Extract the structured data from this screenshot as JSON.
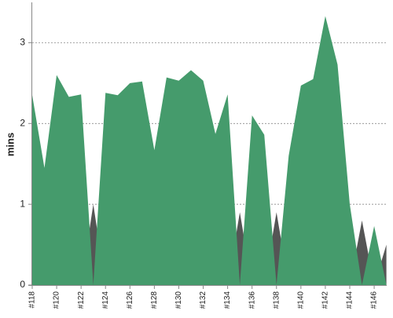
{
  "chart_data": {
    "type": "area",
    "y_label": "mins",
    "categories": [
      "#118",
      null,
      "#120",
      null,
      "#122",
      null,
      "#124",
      null,
      "#126",
      null,
      "#128",
      null,
      "#130",
      null,
      "#132",
      null,
      "#134",
      null,
      "#136",
      null,
      "#138",
      null,
      "#140",
      null,
      "#142",
      null,
      "#144",
      null,
      "#146",
      null
    ],
    "series": [
      {
        "color": "#555555",
        "values": [
          0,
          0,
          0,
          0,
          0,
          1.0,
          0,
          0,
          0,
          0,
          0,
          0,
          0,
          0,
          0,
          0,
          0,
          0.9,
          0,
          0,
          0.9,
          0,
          0,
          0,
          0,
          0,
          0,
          0.8,
          0,
          0.5
        ]
      },
      {
        "color": "#459b6c",
        "values": [
          2.35,
          1.45,
          2.6,
          2.33,
          2.36,
          0,
          2.38,
          2.35,
          2.5,
          2.52,
          1.67,
          2.57,
          2.53,
          2.66,
          2.53,
          1.87,
          2.36,
          0,
          2.1,
          1.86,
          0,
          1.6,
          2.47,
          2.55,
          3.33,
          2.73,
          1.0,
          0,
          0.73,
          0
        ]
      }
    ],
    "ylim": [
      0,
      3.5
    ],
    "yticks": [
      0,
      1,
      2,
      3
    ],
    "grid": true
  }
}
